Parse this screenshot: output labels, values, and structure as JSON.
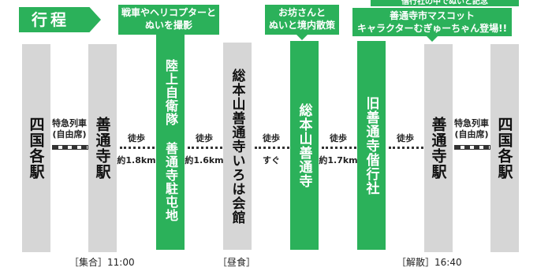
{
  "title": "行程",
  "columns": {
    "c1": "四国各駅",
    "c2": "善通寺駅",
    "c3": "陸上自衛隊 善通寺駐屯地",
    "c4": "総本山善通寺いろは会館",
    "c5": "総本山善通寺",
    "c6": "旧善通寺偕行社",
    "c7": "善通寺駅",
    "c8": "四国各駅"
  },
  "callouts": {
    "c3": [
      "戦車やヘリコプターと",
      "ぬいを撮影"
    ],
    "c5": [
      "お坊さんと",
      "ぬいと境内散策"
    ],
    "c6_top": "偕行社の中でぬいと記念",
    "c6": [
      "善通寺市マスコット",
      "キャラクターむぎゅーちゃん登場!!"
    ]
  },
  "connectors": {
    "rail_left": [
      "特急列車",
      "(自由席)"
    ],
    "walk1": {
      "top": "徒歩",
      "bottom": "約1.8km"
    },
    "walk2": {
      "top": "徒歩",
      "bottom": "約1.6km"
    },
    "walk3": {
      "top": "徒歩",
      "bottom": "すぐ"
    },
    "walk4": {
      "top": "徒歩",
      "bottom": "約1.7km"
    },
    "walk5": {
      "top": "徒歩"
    },
    "rail_right": [
      "特急列車",
      "(自由席)"
    ]
  },
  "bottom": {
    "assembly": "［集合］11:00",
    "lunch": "［昼食］",
    "dismissal": "［解散］16:40"
  },
  "colors": {
    "accent": "#2bb15a",
    "station": "#d6d6d6"
  }
}
